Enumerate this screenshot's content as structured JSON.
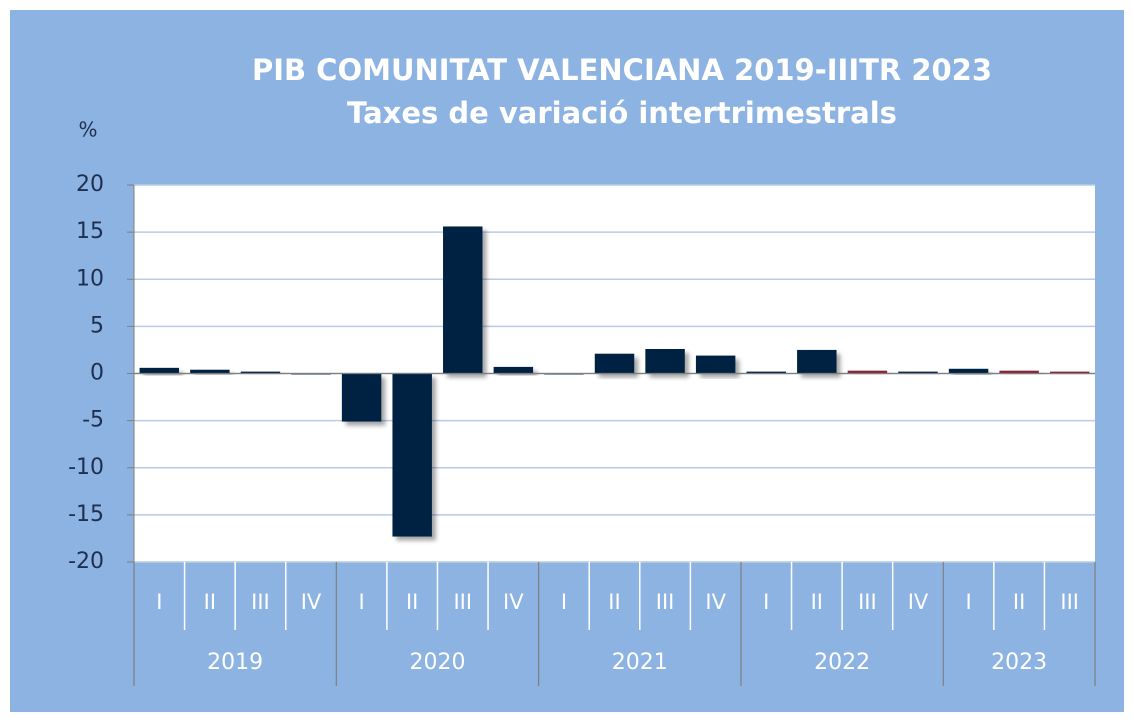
{
  "chart_data": {
    "type": "bar",
    "title": "PIB COMUNITAT VALENCIANA 2019-IIITR 2023",
    "subtitle": "Taxes de variació intertrimestrals",
    "y_label": "%",
    "categories": [
      "I",
      "II",
      "III",
      "IV",
      "I",
      "II",
      "III",
      "IV",
      "I",
      "II",
      "III",
      "IV",
      "I",
      "II",
      "III",
      "IV",
      "I",
      "II",
      "III"
    ],
    "years": [
      "2019",
      "2020",
      "2021",
      "2022",
      "2023"
    ],
    "values": [
      0.6,
      0.4,
      0.2,
      0.0,
      -5.1,
      -17.3,
      15.6,
      0.7,
      0.0,
      2.1,
      2.6,
      1.9,
      0.2,
      2.5,
      0.3,
      0.2,
      0.5,
      0.3,
      0.2
    ],
    "colors": [
      "#002142",
      "#002142",
      "#002142",
      "#002142",
      "#002142",
      "#002142",
      "#002142",
      "#002142",
      "#002142",
      "#002142",
      "#002142",
      "#002142",
      "#002142",
      "#002142",
      "#8b2035",
      "#002142",
      "#002142",
      "#8b2035",
      "#8b2035"
    ],
    "ylim": [
      -20,
      20
    ],
    "yticks": [
      -20,
      -15,
      -10,
      -5,
      0,
      5,
      10,
      15,
      20
    ],
    "grid": true
  }
}
